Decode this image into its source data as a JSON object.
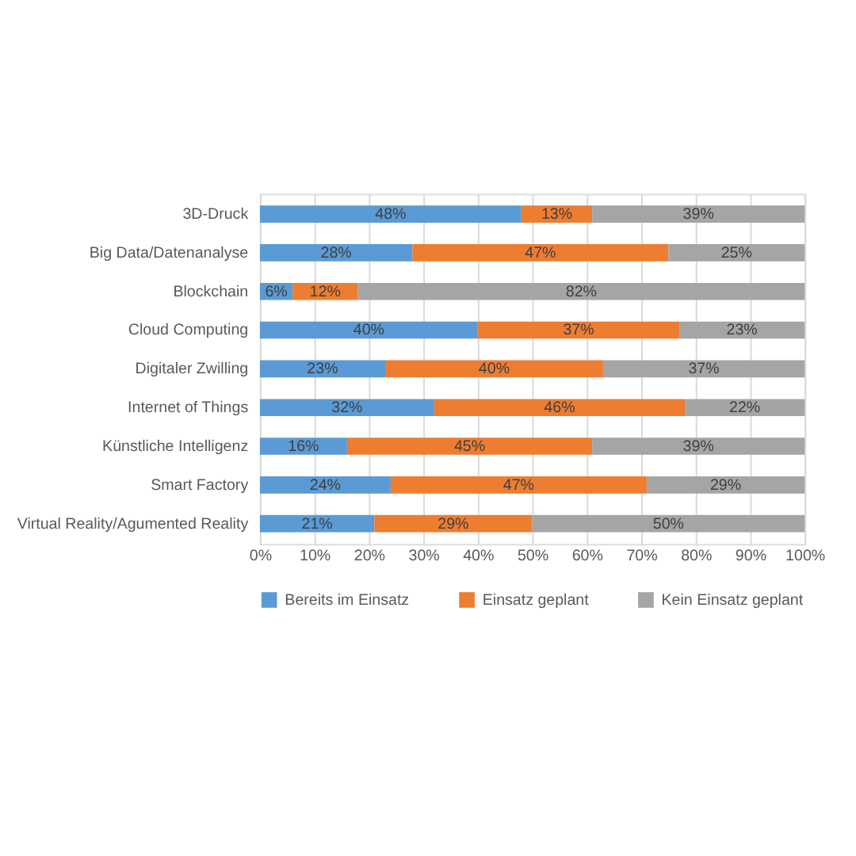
{
  "chart_data": {
    "type": "bar",
    "orientation": "horizontal",
    "stacked": true,
    "categories": [
      "3D-Druck",
      "Big Data/Datenanalyse",
      "Blockchain",
      "Cloud Computing",
      "Digitaler Zwilling",
      "Internet of Things",
      "Künstliche Intelligenz",
      "Smart Factory",
      "Virtual Reality/Agumented Reality"
    ],
    "series": [
      {
        "name": "Bereits im Einsatz",
        "color": "#5b9bd5",
        "values": [
          48,
          28,
          6,
          40,
          23,
          32,
          16,
          24,
          21
        ]
      },
      {
        "name": "Einsatz geplant",
        "color": "#ed7d31",
        "values": [
          13,
          47,
          12,
          37,
          40,
          46,
          45,
          47,
          29
        ]
      },
      {
        "name": "Kein Einsatz geplant",
        "color": "#a5a5a5",
        "values": [
          39,
          25,
          82,
          23,
          37,
          22,
          39,
          29,
          50
        ]
      }
    ],
    "value_labels": [
      [
        "48%",
        "28%",
        "6%",
        "40%",
        "23%",
        "32%",
        "16%",
        "24%",
        "21%"
      ],
      [
        "13%",
        "47%",
        "12%",
        "37%",
        "40%",
        "46%",
        "45%",
        "47%",
        "29%"
      ],
      [
        "39%",
        "25%",
        "82%",
        "23%",
        "37%",
        "22%",
        "39%",
        "29%",
        "50%"
      ]
    ],
    "xlim": [
      0,
      100
    ],
    "xticks": [
      {
        "value": 0,
        "label": "0%"
      },
      {
        "value": 10,
        "label": "10%"
      },
      {
        "value": 20,
        "label": "20%"
      },
      {
        "value": 30,
        "label": "30%"
      },
      {
        "value": 40,
        "label": "40%"
      },
      {
        "value": 50,
        "label": "50%"
      },
      {
        "value": 60,
        "label": "60%"
      },
      {
        "value": 70,
        "label": "70%"
      },
      {
        "value": 80,
        "label": "80%"
      },
      {
        "value": 90,
        "label": "90%"
      },
      {
        "value": 100,
        "label": "100%"
      }
    ],
    "grid": "x",
    "legend": "bottom"
  }
}
